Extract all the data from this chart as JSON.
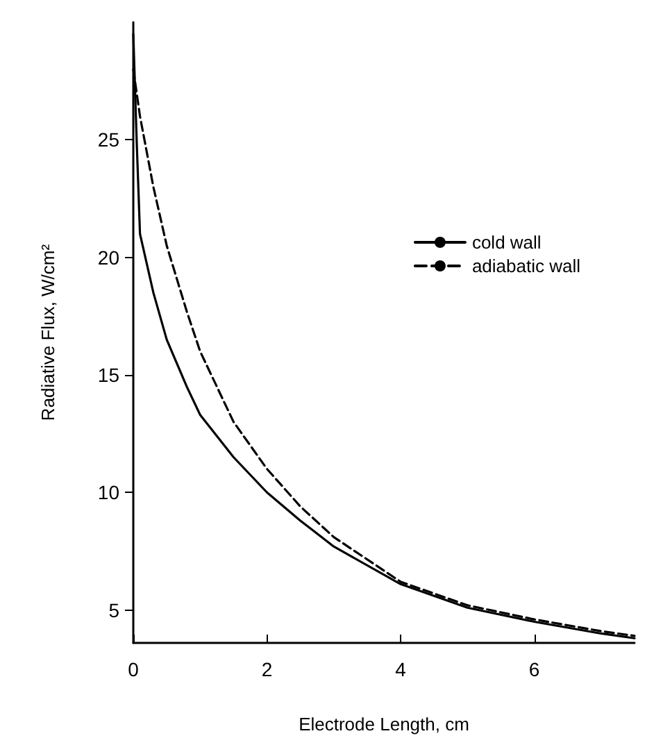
{
  "chart_data": {
    "type": "line",
    "xlabel": "Electrode Length, cm",
    "ylabel": "Radiative Flux, W/cm²",
    "xlim": [
      0,
      7.5
    ],
    "xticks": [
      0,
      2,
      4,
      6
    ],
    "ylim": [
      3.6,
      30
    ],
    "yticks": [
      5,
      10,
      15,
      20,
      25
    ],
    "grid": false,
    "legend": "top right",
    "marker": "none",
    "series": [
      {
        "name": "cold wall",
        "color": "#000000",
        "line_style": "solid",
        "x": [
          0,
          0.05,
          0.1,
          0.3,
          0.5,
          0.8,
          1,
          1.5,
          2,
          2.5,
          3,
          4,
          5,
          6,
          7,
          7.5
        ],
        "values": [
          29.5,
          25,
          21,
          18.5,
          16.5,
          14.5,
          13.3,
          11.5,
          10,
          8.8,
          7.7,
          6.1,
          5.1,
          4.5,
          4,
          3.8
        ]
      },
      {
        "name": "adiabatic wall",
        "color": "#000000",
        "line_style": "dashed",
        "x": [
          0,
          0.1,
          0.3,
          0.5,
          0.8,
          1,
          1.5,
          2,
          2.5,
          3,
          4,
          5,
          6,
          7,
          7.5
        ],
        "values": [
          28,
          26,
          23,
          20.5,
          17.7,
          16,
          13,
          11,
          9.4,
          8.1,
          6.2,
          5.2,
          4.6,
          4.1,
          3.9
        ]
      }
    ]
  }
}
